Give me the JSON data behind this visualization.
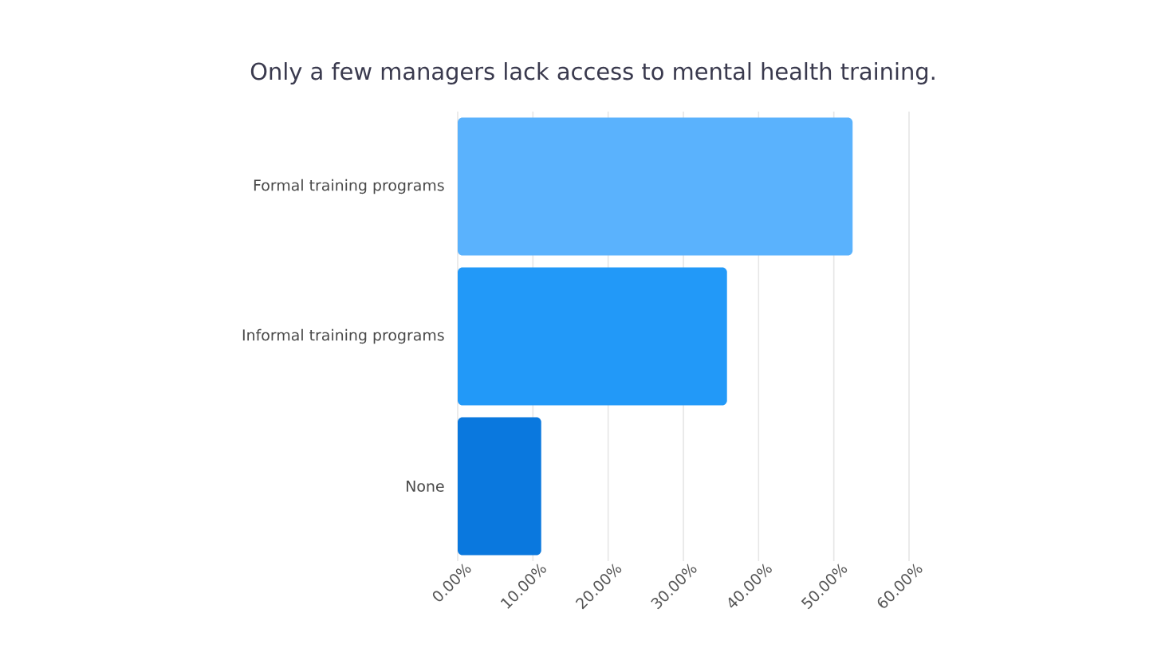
{
  "chart_data": {
    "type": "bar",
    "orientation": "horizontal",
    "title": "Only a few managers lack access to mental health training.",
    "categories": [
      "Formal training programs",
      "Informal training programs",
      "None"
    ],
    "values": [
      52.5,
      35.8,
      11.1
    ],
    "colors": [
      "#5ab2fd",
      "#2299f8",
      "#0a78de"
    ],
    "xlim": [
      0,
      60
    ],
    "xticks": [
      {
        "value": 0,
        "label": "0.00%"
      },
      {
        "value": 10,
        "label": "10.00%"
      },
      {
        "value": 20,
        "label": "20.00%"
      },
      {
        "value": 30,
        "label": "30.00%"
      },
      {
        "value": 40,
        "label": "40.00%"
      },
      {
        "value": 50,
        "label": "50.00%"
      },
      {
        "value": 60,
        "label": "60.00%"
      }
    ],
    "grid": "x"
  }
}
